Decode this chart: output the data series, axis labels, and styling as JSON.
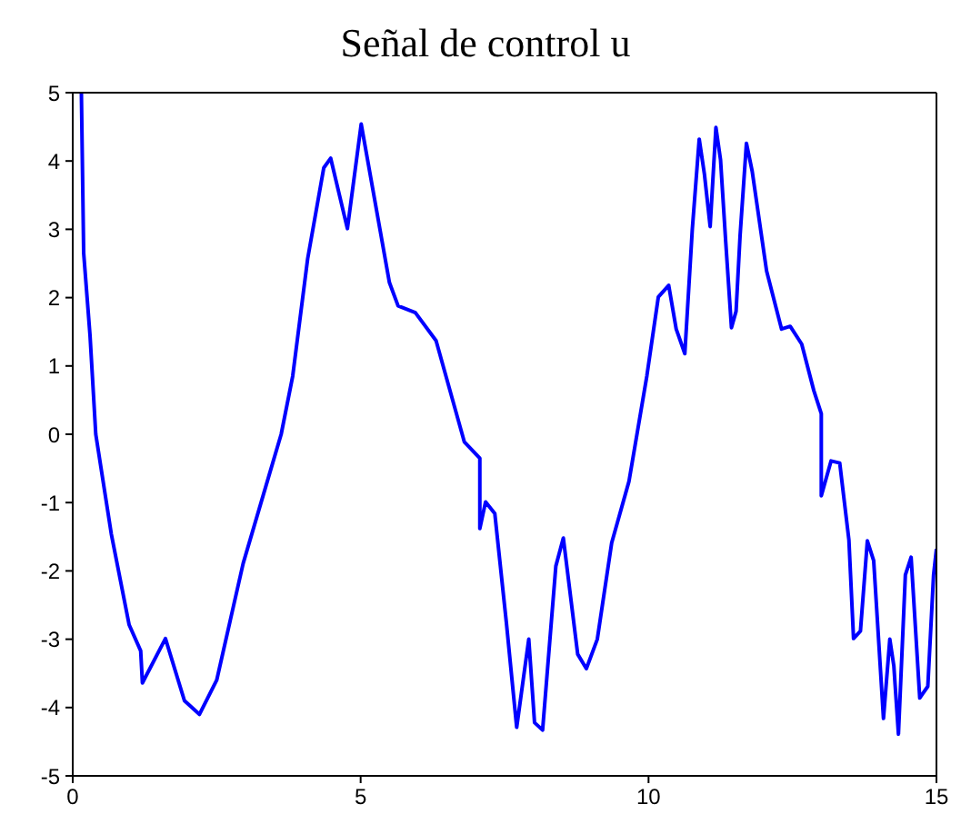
{
  "chart_data": {
    "type": "line",
    "title": "Señal de control u",
    "x": [
      0.15,
      0.19,
      0.3,
      0.4,
      0.67,
      0.98,
      1.18,
      1.21,
      1.61,
      1.94,
      2.2,
      2.5,
      2.96,
      3.41,
      3.62,
      3.82,
      4.08,
      4.36,
      4.48,
      4.77,
      5.01,
      5.5,
      5.65,
      5.95,
      6.31,
      6.8,
      7.07,
      7.07,
      7.17,
      7.33,
      7.53,
      7.71,
      7.92,
      8.02,
      8.16,
      8.39,
      8.52,
      8.77,
      8.92,
      9.11,
      9.36,
      9.66,
      9.97,
      10.17,
      10.35,
      10.48,
      10.63,
      10.76,
      10.88,
      10.97,
      11.07,
      11.17,
      11.25,
      11.34,
      11.44,
      11.52,
      11.59,
      11.7,
      11.8,
      12.05,
      12.31,
      12.46,
      12.66,
      12.87,
      13.0,
      13.0,
      13.17,
      13.32,
      13.48,
      13.56,
      13.68,
      13.8,
      13.91,
      14.08,
      14.19,
      14.26,
      14.34,
      14.46,
      14.56,
      14.71,
      14.85,
      14.95,
      15.0
    ],
    "series": [
      {
        "color": "#0000ff",
        "values": [
          5,
          2.65,
          1.45,
          0.0,
          -1.46,
          -2.79,
          -3.17,
          -3.64,
          -2.99,
          -3.9,
          -4.1,
          -3.6,
          -1.89,
          -0.6,
          0.0,
          0.85,
          2.57,
          3.9,
          4.04,
          3.01,
          4.54,
          2.22,
          1.88,
          1.78,
          1.37,
          -0.11,
          -0.35,
          -1.38,
          -0.99,
          -1.16,
          -2.75,
          -4.29,
          -3.0,
          -4.22,
          -4.33,
          -1.93,
          -1.52,
          -3.22,
          -3.43,
          -3.0,
          -1.59,
          -0.69,
          0.85,
          2.01,
          2.18,
          1.54,
          1.18,
          3.0,
          4.32,
          3.81,
          3.04,
          4.49,
          4.02,
          2.82,
          1.56,
          1.8,
          2.91,
          4.26,
          3.85,
          2.39,
          1.54,
          1.58,
          1.32,
          0.64,
          0.3,
          -0.9,
          -0.39,
          -0.42,
          -1.55,
          -2.99,
          -2.88,
          -1.56,
          -1.85,
          -4.16,
          -3.0,
          -3.39,
          -4.39,
          -2.06,
          -1.8,
          -3.86,
          -3.69,
          -2.06,
          -1.68
        ]
      }
    ],
    "xlim": [
      0,
      15
    ],
    "xticks": [
      0,
      5,
      10,
      15
    ],
    "ylim": [
      -5,
      5
    ],
    "yticks": [
      -5,
      -4,
      -3,
      -2,
      -1,
      0,
      1,
      2,
      3,
      4,
      5
    ],
    "grid": false,
    "legend": false,
    "marker": "none",
    "line_style": "solid"
  }
}
